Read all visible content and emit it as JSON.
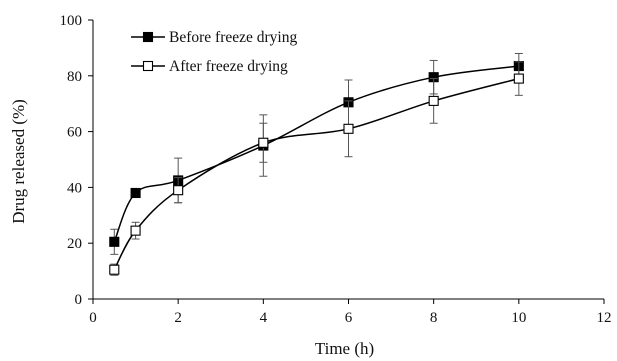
{
  "chart_data": {
    "type": "line",
    "xlabel": "Time (h)",
    "ylabel": "Drug released (%)",
    "xlim": [
      0,
      12
    ],
    "ylim": [
      0,
      100
    ],
    "xticks": [
      0,
      2,
      4,
      6,
      8,
      10,
      12
    ],
    "yticks": [
      0,
      20,
      40,
      60,
      80,
      100
    ],
    "grid": false,
    "legend_position": "top-left",
    "series": [
      {
        "name": "Before freeze drying",
        "marker": "filled-square",
        "color": "#000000",
        "points": [
          {
            "x": 0.5,
            "y": 20.5,
            "err": 4.5
          },
          {
            "x": 1,
            "y": 38,
            "err": 0.8
          },
          {
            "x": 2,
            "y": 42.5,
            "err": 8
          },
          {
            "x": 4,
            "y": 55,
            "err": 11
          },
          {
            "x": 6,
            "y": 70.5,
            "err": 8
          },
          {
            "x": 8,
            "y": 79.5,
            "err": 6
          },
          {
            "x": 10,
            "y": 83.5,
            "err": 4.5
          }
        ]
      },
      {
        "name": "After freeze drying",
        "marker": "open-square",
        "color": "#000000",
        "points": [
          {
            "x": 0.5,
            "y": 10.5,
            "err": 2
          },
          {
            "x": 1,
            "y": 24.5,
            "err": 3
          },
          {
            "x": 2,
            "y": 39,
            "err": 4.5
          },
          {
            "x": 4,
            "y": 56,
            "err": 7
          },
          {
            "x": 6,
            "y": 61,
            "err": 10
          },
          {
            "x": 8,
            "y": 71,
            "err": 8
          },
          {
            "x": 10,
            "y": 79,
            "err": 6
          }
        ]
      }
    ]
  }
}
